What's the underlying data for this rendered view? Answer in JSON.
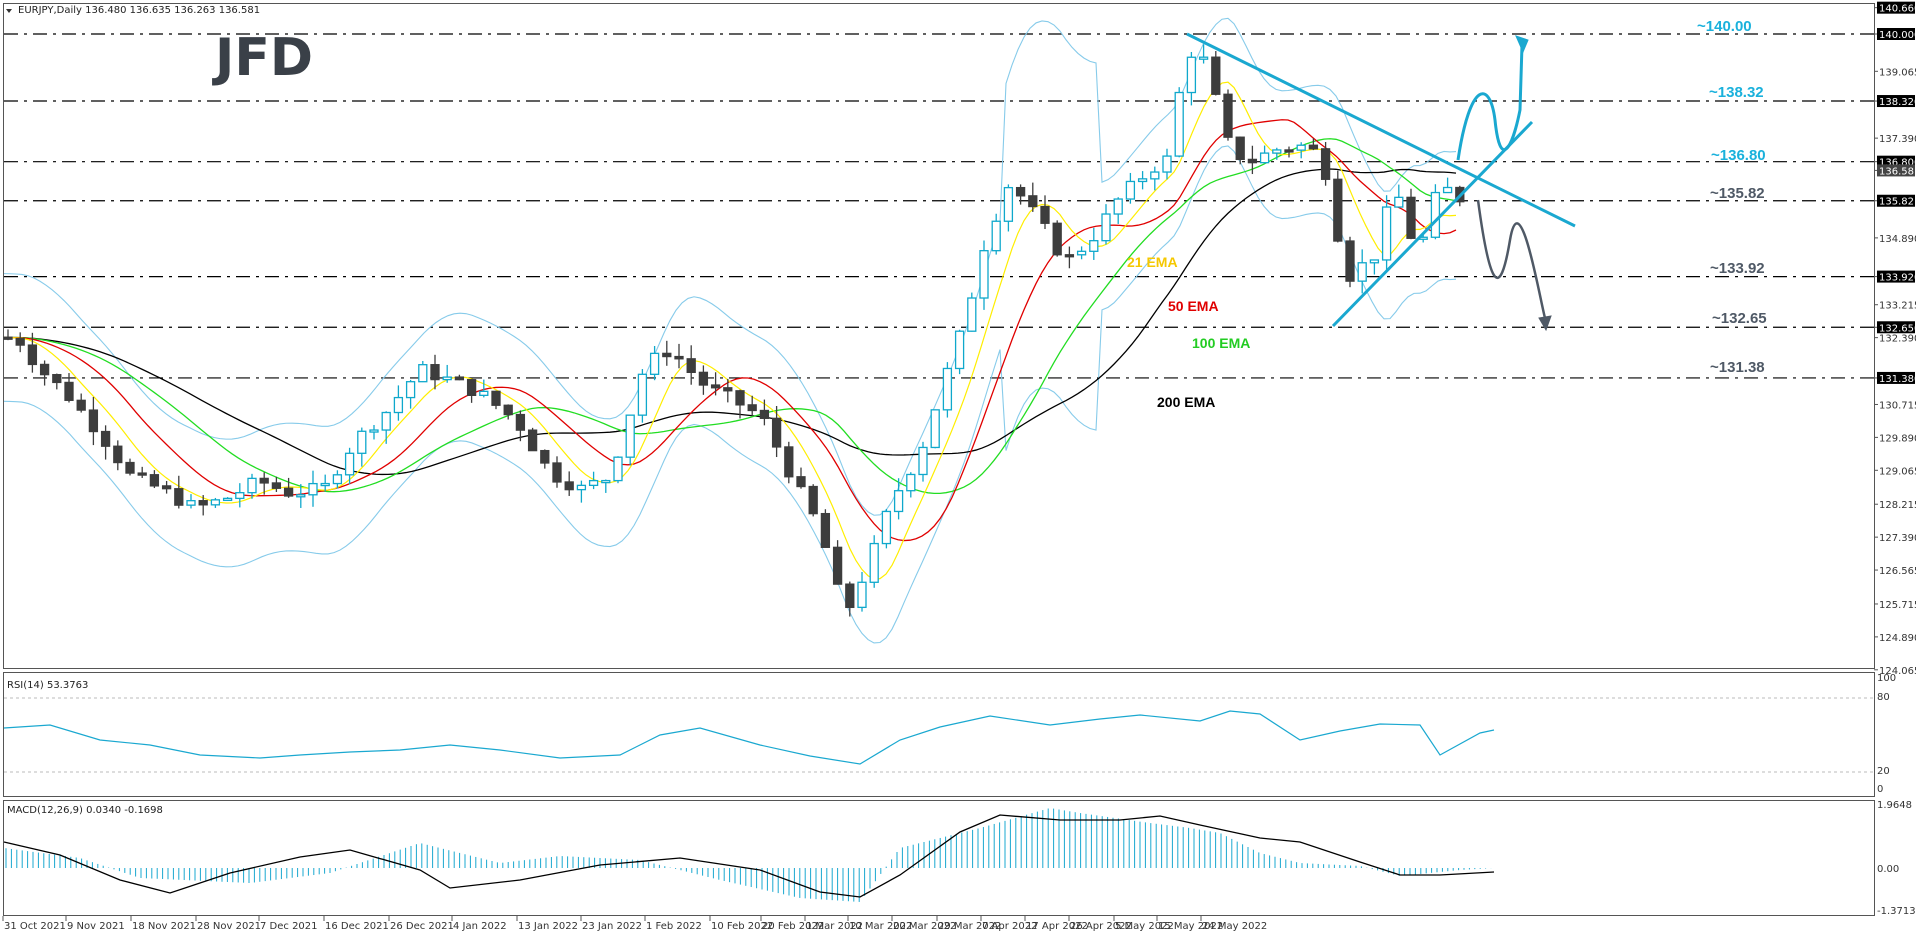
{
  "header": {
    "symbol_line": "EURJPY,Daily  136.480 136.635 136.263 136.581"
  },
  "logo": {
    "text": "JFD"
  },
  "colors": {
    "bull": "#0fa8cc",
    "bear": "#3d3d3d",
    "ema21": "#ffee00",
    "ema50": "#e00000",
    "ema100": "#22dd22",
    "ema200": "#000000",
    "bollinger": "#87cbea",
    "trendline": "#1aa8d0",
    "accent_label": "#1ab1dc",
    "grey_label": "#4f5966",
    "rsi": "#1aa8d0",
    "macd_hist": "#1aa8d0",
    "macd_signal": "#000000"
  },
  "price_axis": {
    "ticks": [
      "140.660",
      "140.000",
      "139.065",
      "138.320",
      "137.390",
      "136.800",
      "136.581",
      "135.821",
      "134.890",
      "133.920",
      "133.215",
      "132.650",
      "132.390",
      "131.380",
      "130.715",
      "129.890",
      "129.065",
      "128.215",
      "127.390",
      "126.565",
      "125.715",
      "124.890",
      "124.065"
    ],
    "tagged": [
      "140.660",
      "140.000",
      "138.320",
      "136.800",
      "135.821",
      "133.920",
      "132.650",
      "131.380"
    ],
    "current": "136.581"
  },
  "levels": [
    {
      "label": "~140.00",
      "price": 140.0,
      "color": "accent"
    },
    {
      "label": "~138.32",
      "price": 138.32,
      "color": "accent"
    },
    {
      "label": "~136.80",
      "price": 136.8,
      "color": "accent"
    },
    {
      "label": "~135.82",
      "price": 135.82,
      "color": "grey"
    },
    {
      "label": "~133.92",
      "price": 133.92,
      "color": "grey"
    },
    {
      "label": "~132.65",
      "price": 132.65,
      "color": "grey"
    },
    {
      "label": "~131.38",
      "price": 131.38,
      "color": "grey"
    }
  ],
  "ema_labels": [
    {
      "label": "21 EMA",
      "color": "#f5c800"
    },
    {
      "label": "50 EMA",
      "color": "#e00000"
    },
    {
      "label": "100 EMA",
      "color": "#22cc22"
    },
    {
      "label": "200 EMA",
      "color": "#000000"
    }
  ],
  "rsi": {
    "title": "RSI(14) 53.3763",
    "levels": [
      "100",
      "80",
      "20",
      "0"
    ]
  },
  "macd": {
    "title": "MACD(12,26,9) 0.0340 -0.1698",
    "levels": [
      "1.9648",
      "0.00",
      "-1.3713"
    ]
  },
  "time_axis": [
    "31 Oct 2021",
    "9 Nov 2021",
    "18 Nov 2021",
    "28 Nov 2021",
    "7 Dec 2021",
    "16 Dec 2021",
    "26 Dec 2021",
    "4 Jan 2022",
    "13 Jan 2022",
    "23 Jan 2022",
    "1 Feb 2022",
    "10 Feb 2022",
    "20 Feb 2022",
    "1 Mar 2022",
    "10 Mar 2022",
    "20 Mar 2022",
    "29 Mar 2022",
    "7 Apr 2022",
    "17 Apr 2022",
    "26 Apr 2022",
    "5 May 2022",
    "15 May 2022",
    "24 May 2022"
  ],
  "chart_data": {
    "type": "candlestick",
    "title": "EURJPY, Daily",
    "ohlc_last": {
      "open": 136.48,
      "high": 136.635,
      "low": 136.263,
      "close": 136.581
    },
    "ylim": [
      124.065,
      140.66
    ],
    "x": [
      "31 Oct 2021",
      "9 Nov 2021",
      "18 Nov 2021",
      "28 Nov 2021",
      "7 Dec 2021",
      "16 Dec 2021",
      "26 Dec 2021",
      "4 Jan 2022",
      "13 Jan 2022",
      "23 Jan 2022",
      "1 Feb 2022",
      "10 Feb 2022",
      "20 Feb 2022",
      "1 Mar 2022",
      "10 Mar 2022",
      "20 Mar 2022",
      "29 Mar 2022",
      "7 Apr 2022",
      "17 Apr 2022",
      "26 Apr 2022",
      "5 May 2022",
      "15 May 2022",
      "24 May 2022"
    ],
    "close_approx": [
      132.1,
      131.0,
      128.9,
      128.6,
      129.0,
      128.6,
      130.6,
      131.2,
      130.4,
      129.0,
      131.6,
      130.3,
      129.2,
      125.4,
      129.9,
      134.3,
      135.3,
      136.4,
      137.6,
      136.2,
      136.6,
      134.3,
      136.6
    ],
    "horizontal_levels": [
      140.0,
      138.32,
      136.8,
      135.82,
      133.92,
      132.65,
      131.38
    ],
    "indicators": [
      "21 EMA",
      "50 EMA",
      "100 EMA",
      "200 EMA",
      "Bollinger Bands"
    ],
    "pattern": "symmetrical triangle with bullish (to ~140.00) and bearish (to ~132.65) scenario arrows",
    "subplots": [
      {
        "name": "RSI(14)",
        "value": 53.3763,
        "ylim": [
          0,
          100
        ],
        "levels": [
          20,
          80
        ]
      },
      {
        "name": "MACD(12,26,9)",
        "macd": 0.034,
        "signal": -0.1698,
        "ylim": [
          -1.3713,
          1.9648
        ]
      }
    ]
  }
}
